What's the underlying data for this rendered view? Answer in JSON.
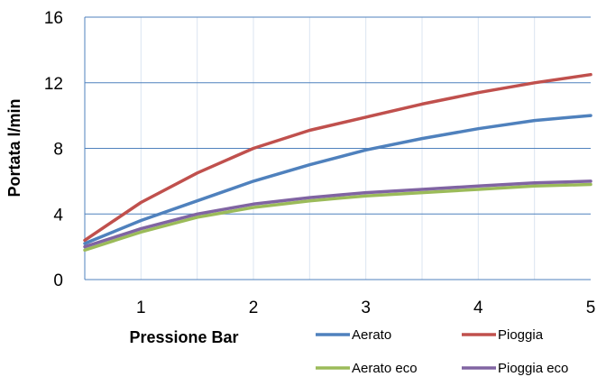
{
  "chart_data": {
    "type": "line",
    "title": "",
    "xlabel": "Pressione Bar",
    "ylabel": "Portata l/min",
    "xlim": [
      0.5,
      5
    ],
    "ylim": [
      0,
      16
    ],
    "xticks": [
      1,
      2,
      3,
      4,
      5
    ],
    "yticks": [
      0,
      4,
      8,
      12,
      16
    ],
    "xtick_labels": [
      "1",
      "2",
      "3",
      "4",
      "5"
    ],
    "ytick_labels": [
      "0",
      "4",
      "8",
      "12",
      "16"
    ],
    "grid": "on",
    "legend_position": "bottom-right",
    "x": [
      0.5,
      1,
      1.5,
      2,
      2.5,
      3,
      3.5,
      4,
      4.5,
      5
    ],
    "series": [
      {
        "name": "Aerato",
        "color": "#4f81bd",
        "values": [
          2.2,
          3.6,
          4.8,
          6.0,
          7.0,
          7.9,
          8.6,
          9.2,
          9.7,
          10.0
        ]
      },
      {
        "name": "Pioggia",
        "color": "#c0504d",
        "values": [
          2.4,
          4.7,
          6.5,
          8.0,
          9.1,
          9.9,
          10.7,
          11.4,
          12.0,
          12.5
        ]
      },
      {
        "name": "Aerato eco",
        "color": "#9bbb59",
        "values": [
          1.8,
          2.9,
          3.8,
          4.4,
          4.8,
          5.1,
          5.3,
          5.5,
          5.7,
          5.8
        ]
      },
      {
        "name": "Pioggia eco",
        "color": "#8064a2",
        "values": [
          2.0,
          3.1,
          4.0,
          4.6,
          5.0,
          5.3,
          5.5,
          5.7,
          5.9,
          6.0
        ]
      }
    ]
  }
}
